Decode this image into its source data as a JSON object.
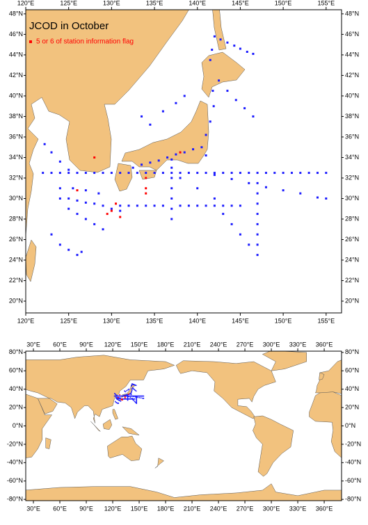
{
  "chart_data": [
    {
      "type": "map",
      "title": "JCOD in October",
      "xlim": [
        120,
        156.8
      ],
      "ylim": [
        18.85,
        48.4
      ],
      "xticks": [
        {
          "value": 120,
          "label": "120°E"
        },
        {
          "value": 125,
          "label": "125°E"
        },
        {
          "value": 130,
          "label": "130°E"
        },
        {
          "value": 135,
          "label": "135°E"
        },
        {
          "value": 140,
          "label": "140°E"
        },
        {
          "value": 145,
          "label": "145°E"
        },
        {
          "value": 150,
          "label": "150°E"
        },
        {
          "value": 155,
          "label": "155°E"
        }
      ],
      "yticks": [
        {
          "value": 20,
          "label": "20°N"
        },
        {
          "value": 22,
          "label": "22°N"
        },
        {
          "value": 24,
          "label": "24°N"
        },
        {
          "value": 26,
          "label": "26°N"
        },
        {
          "value": 28,
          "label": "28°N"
        },
        {
          "value": 30,
          "label": "30°N"
        },
        {
          "value": 32,
          "label": "32°N"
        },
        {
          "value": 34,
          "label": "34°N"
        },
        {
          "value": 36,
          "label": "36°N"
        },
        {
          "value": 38,
          "label": "38°N"
        },
        {
          "value": 40,
          "label": "40°N"
        },
        {
          "value": 42,
          "label": "42°N"
        },
        {
          "value": 44,
          "label": "44°N"
        },
        {
          "value": 46,
          "label": "46°N"
        },
        {
          "value": 48,
          "label": "48°N"
        }
      ],
      "series": [
        {
          "color": "#1a1aff",
          "x": [
            122,
            123,
            124,
            125,
            126,
            127,
            128,
            129,
            130,
            131,
            132,
            133,
            134,
            135,
            136,
            137,
            138,
            139,
            140,
            141,
            142,
            143,
            144,
            145,
            146,
            147,
            148,
            149,
            150,
            151,
            152,
            153,
            154,
            155
          ],
          "y": [
            32.5,
            32.5,
            32.5,
            32.5,
            32.5,
            32.5,
            32.5,
            32.5,
            32.5,
            32.5,
            32.5,
            32.5,
            32.5,
            32.5,
            32.5,
            32.5,
            32.5,
            32.5,
            32.5,
            32.5,
            32.5,
            32.5,
            32.5,
            32.5,
            32.5,
            32.5,
            32.5,
            32.5,
            32.5,
            32.5,
            32.5,
            32.5,
            32.5,
            32.5
          ]
        },
        {
          "color": "#1a1aff",
          "x": [
            142,
            144,
            146,
            148,
            150,
            152,
            154,
            155
          ],
          "y": [
            32.3,
            31.9,
            31.5,
            31.1,
            30.8,
            30.5,
            30.1,
            30
          ]
        },
        {
          "color": "#1a1aff",
          "x": [
            142,
            142.7,
            143.5,
            144.3,
            145,
            145.8,
            146.5,
            141.7,
            141.5
          ],
          "y": [
            45.8,
            45.5,
            45.2,
            44.9,
            44.6,
            44.3,
            44.1,
            44.5,
            43.5
          ]
        },
        {
          "color": "#1a1aff",
          "x": [
            142.5,
            143.5,
            144.5,
            145.5,
            146.5
          ],
          "y": [
            41.5,
            40.5,
            39.6,
            38.8,
            38
          ]
        },
        {
          "color": "#1a1aff",
          "x": [
            141.8,
            141.9,
            141.5,
            141
          ],
          "y": [
            40.5,
            39,
            37.5,
            36.2
          ]
        },
        {
          "color": "#1a1aff",
          "x": [
            137,
            137,
            137,
            137,
            137,
            137,
            137
          ],
          "y": [
            33.8,
            33,
            32,
            31,
            30,
            29,
            28
          ]
        },
        {
          "color": "#1a1aff",
          "x": [
            147,
            147,
            147,
            147,
            147,
            147,
            147,
            147
          ],
          "y": [
            31.5,
            30.5,
            29.5,
            28.5,
            27.5,
            26.5,
            25.5,
            24.5
          ]
        },
        {
          "color": "#1a1aff",
          "x": [
            132.5,
            133.5,
            134.5,
            135.5,
            136.5,
            137.5,
            138.5,
            139.5,
            140.5,
            141
          ],
          "y": [
            33,
            33.3,
            33.5,
            33.7,
            34,
            34.3,
            34.5,
            34.8,
            35,
            34.2
          ]
        },
        {
          "color": "#1a1aff",
          "x": [
            124,
            125,
            126,
            127,
            128,
            129,
            130,
            131,
            125,
            126,
            127,
            128,
            129,
            124,
            125.5,
            127,
            128.5
          ],
          "y": [
            30,
            30,
            29.8,
            29.6,
            29.5,
            29.3,
            29,
            28.8,
            29,
            28.5,
            28,
            27.5,
            27,
            31,
            31,
            30.8,
            30.5
          ]
        },
        {
          "color": "#1a1aff",
          "x": [
            122.2,
            123,
            124,
            125
          ],
          "y": [
            35.3,
            34.5,
            33.6,
            32.8
          ]
        },
        {
          "color": "#1a1aff",
          "x": [
            123,
            124,
            125,
            126,
            126.5
          ],
          "y": [
            26.5,
            25.5,
            25,
            24.5,
            24.8
          ]
        },
        {
          "color": "#1a1aff",
          "x": [
            131,
            132,
            133,
            134,
            135,
            136,
            138,
            139,
            140,
            141,
            142,
            143,
            144,
            145
          ],
          "y": [
            29.3,
            29.3,
            29.3,
            29.3,
            29.3,
            29.3,
            29.3,
            29.3,
            29.3,
            29.3,
            29.3,
            29.3,
            29.3,
            29.3
          ]
        },
        {
          "color": "#1a1aff",
          "x": [
            138,
            140,
            142,
            143,
            144,
            145,
            146
          ],
          "y": [
            32,
            31,
            30,
            28.5,
            27.5,
            26.5,
            25.5
          ]
        },
        {
          "color": "#1a1aff",
          "x": [
            133.5,
            134.5,
            136,
            137.5,
            138.5
          ],
          "y": [
            38,
            37.2,
            38.5,
            39.3,
            40
          ]
        },
        {
          "name": "5 or 6 of station information flag",
          "color": "#ff0000",
          "x": [
            131,
            130,
            130.5,
            134,
            134,
            134,
            128,
            126,
            138,
            129.5
          ],
          "y": [
            28.2,
            28.8,
            29.5,
            32,
            31,
            30.5,
            34,
            30.8,
            34.5,
            28.5
          ]
        }
      ]
    },
    {
      "type": "map",
      "xlim": [
        21.3,
        379.7
      ],
      "ylim": [
        -81.4,
        81.4
      ],
      "xticks": [
        {
          "value": 30,
          "label": "30°E"
        },
        {
          "value": 60,
          "label": "60°E"
        },
        {
          "value": 90,
          "label": "90°E"
        },
        {
          "value": 120,
          "label": "120°E"
        },
        {
          "value": 150,
          "label": "150°E"
        },
        {
          "value": 180,
          "label": "180°E"
        },
        {
          "value": 210,
          "label": "210°E"
        },
        {
          "value": 240,
          "label": "240°E"
        },
        {
          "value": 270,
          "label": "270°E"
        },
        {
          "value": 300,
          "label": "300°E"
        },
        {
          "value": 330,
          "label": "330°E"
        },
        {
          "value": 360,
          "label": "360°E"
        }
      ],
      "yticks": [
        {
          "value": -80,
          "label": "-80°N"
        },
        {
          "value": -60,
          "label": "-60°N"
        },
        {
          "value": -40,
          "label": "-40°N"
        },
        {
          "value": -20,
          "label": "-20°N"
        },
        {
          "value": 0,
          "label": "0°N"
        },
        {
          "value": 20,
          "label": "20°N"
        },
        {
          "value": 40,
          "label": "40°N"
        },
        {
          "value": 60,
          "label": "60°N"
        },
        {
          "value": 80,
          "label": "80°N"
        }
      ]
    }
  ]
}
